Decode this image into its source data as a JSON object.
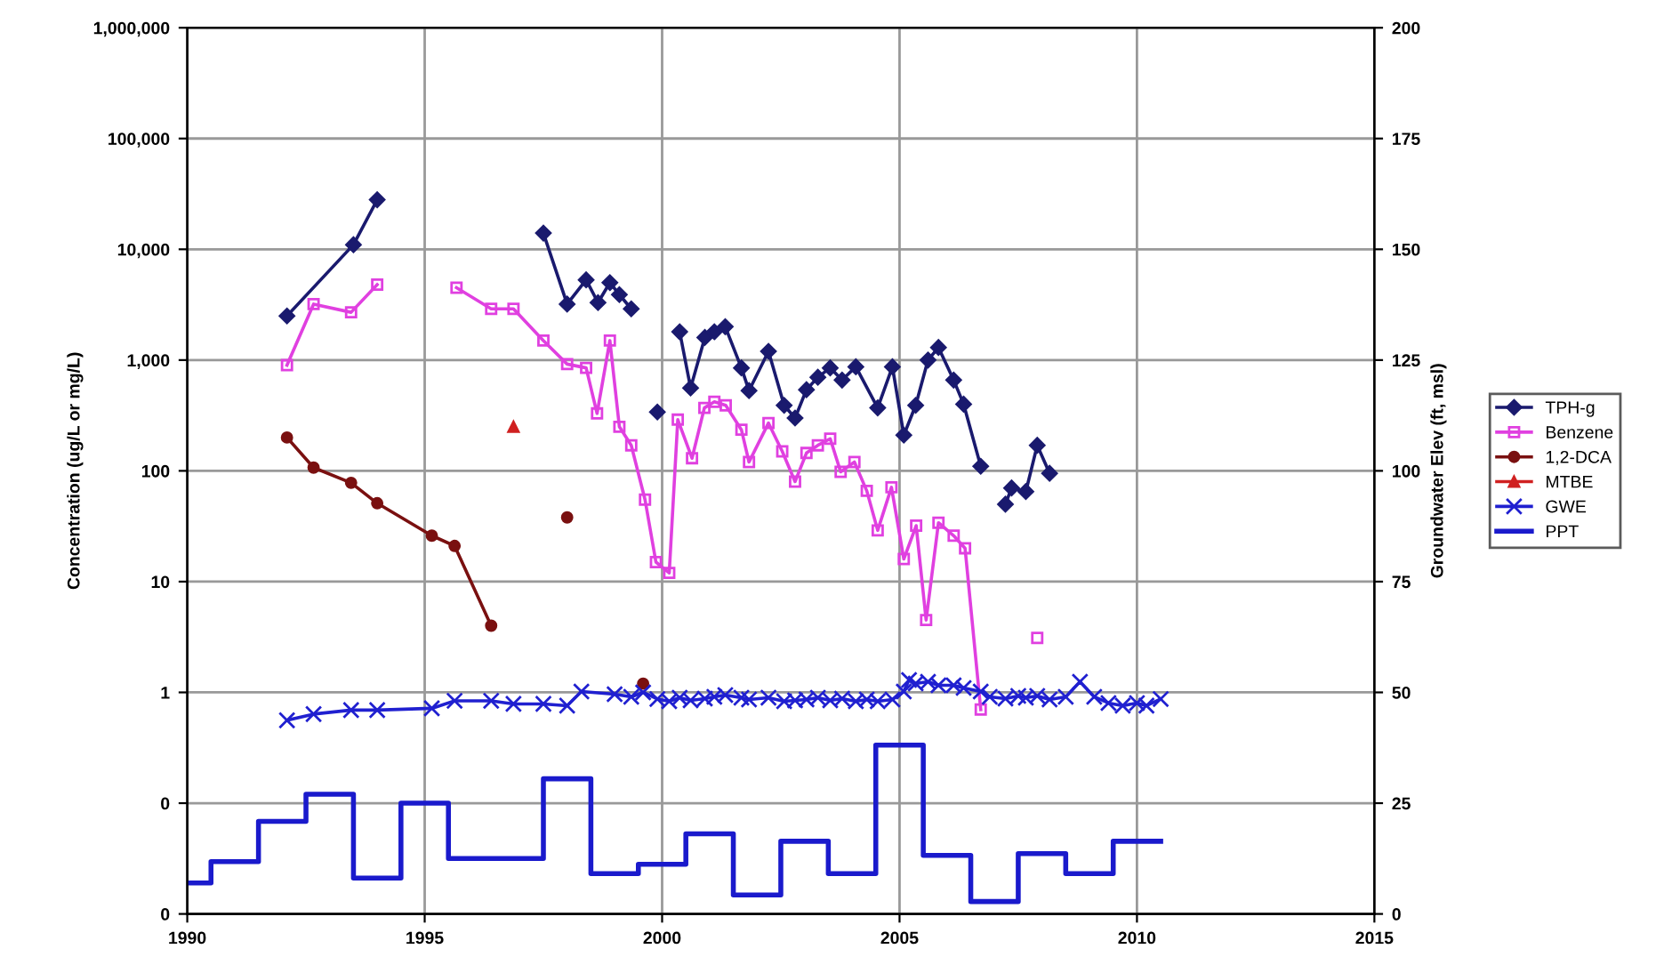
{
  "chart_data": {
    "type": "line",
    "ylabel": "Concentration (ug/L or mg/L)",
    "y2label": "Groundwater Elev (ft, msl)",
    "xlim": [
      1990,
      2015
    ],
    "xticks": [
      1990,
      1995,
      2000,
      2005,
      2010,
      2015
    ],
    "log": "y",
    "ylim": [
      0.01,
      1000000
    ],
    "yticks": [
      {
        "value": 0.01,
        "label": "0"
      },
      {
        "value": 0.1,
        "label": "0"
      },
      1,
      10,
      100,
      {
        "value": 1000,
        "label": "1,000"
      },
      {
        "value": 10000,
        "label": "10,000"
      },
      {
        "value": 100000,
        "label": "100,000"
      },
      {
        "value": 1000000,
        "label": "1,000,000"
      }
    ],
    "y2lim": [
      0,
      200
    ],
    "y2ticks": [
      0,
      25,
      50,
      75,
      100,
      125,
      150,
      175,
      200
    ],
    "grid": true,
    "legend": "right",
    "series": [
      {
        "name": "TPH-g",
        "color": "#1a1a6e",
        "marker": "diamond",
        "x": [
          1992.1,
          1993.5,
          1994.0,
          1996.0,
          1997.5,
          1998.0,
          1998.4,
          1998.65,
          1998.9,
          1999.1,
          1999.35,
          1999.6,
          1999.9,
          2000.1,
          2000.37,
          2000.6,
          2000.9,
          2001.1,
          2001.33,
          2001.67,
          2001.83,
          2002.24,
          2002.57,
          2002.8,
          2003.04,
          2003.28,
          2003.54,
          2003.79,
          2004.08,
          2004.54,
          2004.85,
          2005.09,
          2005.34,
          2005.6,
          2005.82,
          2006.14,
          2006.35,
          2006.71,
          2007.0,
          2007.23,
          2007.36,
          2007.66,
          2007.9,
          2008.16
        ],
        "values": [
          2500,
          11000,
          28000,
          null,
          14000,
          3200,
          5300,
          3300,
          5000,
          3900,
          2900,
          null,
          340,
          null,
          1800,
          560,
          1600,
          1800,
          2000,
          850,
          530,
          1200,
          390,
          300,
          540,
          700,
          850,
          660,
          870,
          370,
          870,
          210,
          390,
          1000,
          1300,
          660,
          400,
          110,
          null,
          50,
          70,
          65,
          170,
          95
        ]
      },
      {
        "name": "Benzene",
        "color": "#e040e0",
        "marker": "square",
        "x": [
          1992.1,
          1992.66,
          1993.45,
          1994.0,
          1995.0,
          1995.67,
          1996.4,
          1996.87,
          1997.5,
          1998.0,
          1998.4,
          1998.63,
          1998.9,
          1999.1,
          1999.35,
          1999.64,
          1999.87,
          2000.15,
          2000.33,
          2000.63,
          2000.89,
          2001.1,
          2001.34,
          2001.67,
          2001.83,
          2002.24,
          2002.53,
          2002.8,
          2003.04,
          2003.28,
          2003.54,
          2003.76,
          2004.05,
          2004.31,
          2004.54,
          2004.83,
          2005.09,
          2005.35,
          2005.56,
          2005.82,
          2006.14,
          2006.38,
          2006.71,
          2007.3,
          2007.9
        ],
        "values": [
          900,
          3200,
          2700,
          4800,
          null,
          4500,
          2900,
          2900,
          1500,
          920,
          850,
          330,
          1500,
          250,
          170,
          55,
          15,
          12,
          290,
          130,
          370,
          420,
          390,
          235,
          120,
          270,
          150,
          80,
          145,
          170,
          195,
          98,
          120,
          66,
          29,
          71,
          16,
          32,
          4.5,
          34,
          26,
          20,
          0.7,
          null,
          3.1
        ]
      },
      {
        "name": "1,2-DCA",
        "color": "#7a1010",
        "marker": "circle",
        "x": [
          1992.1,
          1992.66,
          1993.45,
          1994.0,
          1995.15,
          1995.63,
          1996.4,
          1997.2,
          1998.0,
          1998.8,
          1999.6
        ],
        "values": [
          200,
          107,
          78,
          51,
          26,
          21,
          4,
          null,
          38,
          null,
          1.2
        ]
      },
      {
        "name": "MTBE",
        "color": "#d02020",
        "marker": "triangle",
        "x": [
          1996.87
        ],
        "values": [
          250
        ]
      },
      {
        "name": "GWE",
        "color": "#2020d0",
        "marker": "cross",
        "axis": "y2",
        "x": [
          1992.1,
          1992.66,
          1993.45,
          1994.0,
          1995.15,
          1995.63,
          1996.4,
          1996.87,
          1997.5,
          1998.0,
          1998.3,
          1999.0,
          1999.35,
          1999.6,
          1999.9,
          2000.15,
          2000.37,
          2000.6,
          2000.9,
          2001.1,
          2001.33,
          2001.67,
          2001.83,
          2002.24,
          2002.57,
          2002.8,
          2003.04,
          2003.28,
          2003.54,
          2003.79,
          2004.08,
          2004.31,
          2004.54,
          2004.85,
          2005.09,
          2005.2,
          2005.34,
          2005.6,
          2005.82,
          2006.14,
          2006.35,
          2006.71,
          2006.9,
          2007.23,
          2007.5,
          2007.66,
          2007.9,
          2008.16,
          2008.5,
          2008.8,
          2009.1,
          2009.4,
          2009.7,
          2010.0,
          2010.2,
          2010.5
        ],
        "values": [
          43.7,
          45.1,
          46.0,
          46.0,
          46.4,
          48.1,
          48.1,
          47.4,
          47.4,
          47.0,
          50.2,
          49.6,
          49.0,
          50.0,
          48.5,
          48.0,
          48.8,
          48.2,
          48.6,
          49.0,
          49.4,
          48.8,
          48.4,
          48.8,
          48.0,
          48.2,
          48.4,
          48.8,
          48.2,
          48.6,
          48.0,
          48.4,
          48.0,
          48.4,
          50.2,
          52.8,
          52.0,
          52.4,
          51.6,
          51.6,
          51.0,
          50.2,
          49.0,
          48.6,
          49.2,
          48.8,
          49.2,
          48.4,
          49.0,
          52.4,
          49.0,
          47.6,
          47.0,
          47.6,
          47.0,
          48.5
        ]
      },
      {
        "name": "PPT",
        "color": "#1a1acc",
        "type": "step",
        "marker": "none",
        "axis": "y2",
        "x": [
          1990,
          1990.5,
          1991.5,
          1992.5,
          1993.5,
          1994.5,
          1995.5,
          1997.5,
          1998.5,
          1999.5,
          2000.5,
          2001.5,
          2002.5,
          2003.5,
          2004.5,
          2005.5,
          2006.5,
          2007.5,
          2008.5,
          2009.5,
          2010.5
        ],
        "values": [
          7.0,
          11.8,
          20.9,
          27.0,
          8.1,
          25.0,
          12.5,
          30.5,
          9.1,
          11.2,
          18.1,
          4.3,
          16.4,
          9.1,
          38.1,
          13.2,
          2.8,
          13.6,
          9.1,
          16.4,
          16.4
        ]
      }
    ]
  }
}
